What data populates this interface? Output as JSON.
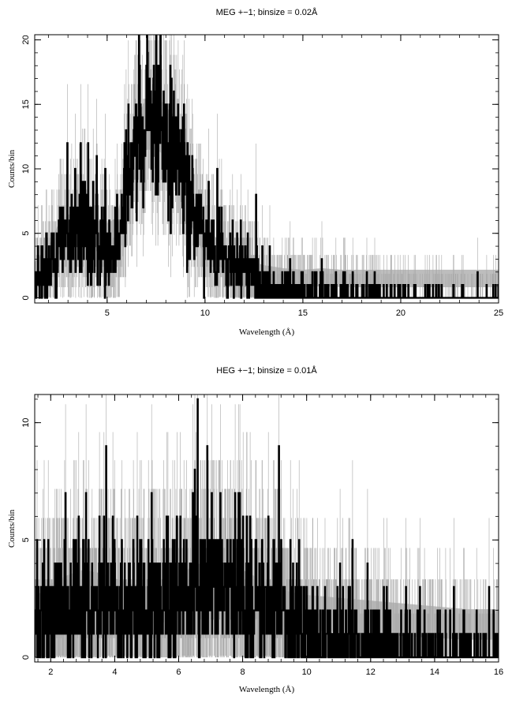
{
  "chart_data": [
    {
      "type": "line",
      "title": "MEG +−1; binsize = 0.02Å",
      "xlabel": "Wavelength (Å)",
      "ylabel": "Counts/bin",
      "xlim": [
        1.3,
        25
      ],
      "ylim": [
        -0.4,
        20.4
      ],
      "xticks": [
        5,
        10,
        15,
        20,
        25
      ],
      "yticks": [
        0,
        5,
        10,
        15,
        20
      ],
      "binsize": 0.02,
      "series": [
        {
          "role": "counts",
          "style": "black histogram",
          "profile": [
            [
              1.3,
              1.0
            ],
            [
              2.0,
              2.2
            ],
            [
              2.5,
              4.2
            ],
            [
              3.0,
              5.0
            ],
            [
              3.5,
              5.0
            ],
            [
              4.0,
              4.8
            ],
            [
              4.5,
              4.5
            ],
            [
              5.0,
              4.3
            ],
            [
              5.5,
              4.8
            ],
            [
              5.8,
              6.0
            ],
            [
              6.0,
              9.0
            ],
            [
              6.5,
              12.0
            ],
            [
              7.0,
              14.0
            ],
            [
              7.5,
              13.8
            ],
            [
              8.0,
              13.5
            ],
            [
              8.5,
              12.0
            ],
            [
              9.0,
              9.5
            ],
            [
              9.5,
              6.0
            ],
            [
              10.0,
              4.5
            ],
            [
              10.5,
              3.5
            ],
            [
              11.0,
              3.0
            ],
            [
              11.5,
              2.5
            ],
            [
              12.0,
              2.0
            ],
            [
              12.5,
              1.5
            ],
            [
              13.0,
              1.0
            ],
            [
              14.0,
              0.75
            ],
            [
              15.0,
              0.55
            ],
            [
              16.0,
              0.45
            ],
            [
              18.0,
              0.3
            ],
            [
              20.0,
              0.2
            ],
            [
              22.0,
              0.12
            ],
            [
              25.0,
              0.1
            ]
          ]
        },
        {
          "role": "model",
          "style": "grey band",
          "profile": [
            [
              1.3,
              2.0
            ],
            [
              2.0,
              3.0
            ],
            [
              2.5,
              4.5
            ],
            [
              3.0,
              5.2
            ],
            [
              3.5,
              5.3
            ],
            [
              4.0,
              5.0
            ],
            [
              4.5,
              4.8
            ],
            [
              5.0,
              4.6
            ],
            [
              5.5,
              5.0
            ],
            [
              6.0,
              8.5
            ],
            [
              6.5,
              12.0
            ],
            [
              7.0,
              13.5
            ],
            [
              7.5,
              13.5
            ],
            [
              8.0,
              13.0
            ],
            [
              8.5,
              11.5
            ],
            [
              9.0,
              9.0
            ],
            [
              9.5,
              6.0
            ],
            [
              10.0,
              4.5
            ],
            [
              10.5,
              3.7
            ],
            [
              11.0,
              3.2
            ],
            [
              11.5,
              2.8
            ],
            [
              12.0,
              2.4
            ],
            [
              12.5,
              2.0
            ],
            [
              13.0,
              1.8
            ],
            [
              14.0,
              1.6
            ],
            [
              15.0,
              1.5
            ],
            [
              16.0,
              1.6
            ],
            [
              17.0,
              1.5
            ],
            [
              18.0,
              1.5
            ],
            [
              20.0,
              1.5
            ],
            [
              25.0,
              1.5
            ]
          ]
        }
      ]
    },
    {
      "type": "line",
      "title": "HEG +−1; binsize = 0.01Å",
      "xlabel": "Wavelength (Å)",
      "ylabel": "Counts/bin",
      "xlim": [
        1.5,
        16
      ],
      "ylim": [
        -0.2,
        11.2
      ],
      "xticks": [
        2,
        4,
        6,
        8,
        10,
        12,
        14,
        16
      ],
      "yticks": [
        0,
        5,
        10
      ],
      "binsize": 0.01,
      "series": [
        {
          "role": "counts",
          "style": "black histogram",
          "profile": [
            [
              1.5,
              1.2
            ],
            [
              2.0,
              2.0
            ],
            [
              2.5,
              2.4
            ],
            [
              3.0,
              2.5
            ],
            [
              3.5,
              2.4
            ],
            [
              4.0,
              2.2
            ],
            [
              4.5,
              2.0
            ],
            [
              5.0,
              1.9
            ],
            [
              5.5,
              2.0
            ],
            [
              6.0,
              2.4
            ],
            [
              6.5,
              2.8
            ],
            [
              7.0,
              2.9
            ],
            [
              7.5,
              2.8
            ],
            [
              8.0,
              2.6
            ],
            [
              8.5,
              2.3
            ],
            [
              9.0,
              1.9
            ],
            [
              9.5,
              1.6
            ],
            [
              10.0,
              1.1
            ],
            [
              11.0,
              0.8
            ],
            [
              12.0,
              0.6
            ],
            [
              13.0,
              0.45
            ],
            [
              14.0,
              0.35
            ],
            [
              15.0,
              0.3
            ],
            [
              16.0,
              0.25
            ]
          ],
          "peaks": [
            [
              6.6,
              11
            ],
            [
              6.5,
              8
            ],
            [
              7.3,
              7
            ],
            [
              3.1,
              7
            ],
            [
              4.7,
              6
            ],
            [
              11.9,
              4
            ],
            [
              12.5,
              3
            ],
            [
              13.1,
              3
            ],
            [
              14.9,
              2
            ]
          ]
        },
        {
          "role": "model",
          "style": "grey band",
          "profile": [
            [
              1.5,
              1.8
            ],
            [
              2.0,
              2.3
            ],
            [
              2.5,
              2.6
            ],
            [
              3.0,
              2.8
            ],
            [
              3.5,
              2.7
            ],
            [
              4.0,
              2.5
            ],
            [
              4.5,
              2.3
            ],
            [
              5.0,
              2.2
            ],
            [
              5.5,
              2.3
            ],
            [
              6.0,
              2.6
            ],
            [
              6.5,
              3.0
            ],
            [
              7.0,
              3.1
            ],
            [
              7.5,
              3.0
            ],
            [
              8.0,
              2.8
            ],
            [
              8.5,
              2.5
            ],
            [
              9.0,
              2.2
            ],
            [
              9.5,
              2.0
            ],
            [
              10.0,
              1.9
            ],
            [
              11.0,
              1.8
            ],
            [
              12.0,
              1.7
            ],
            [
              13.0,
              1.6
            ],
            [
              14.0,
              1.5
            ],
            [
              15.0,
              1.4
            ],
            [
              16.0,
              1.4
            ]
          ]
        }
      ]
    }
  ]
}
